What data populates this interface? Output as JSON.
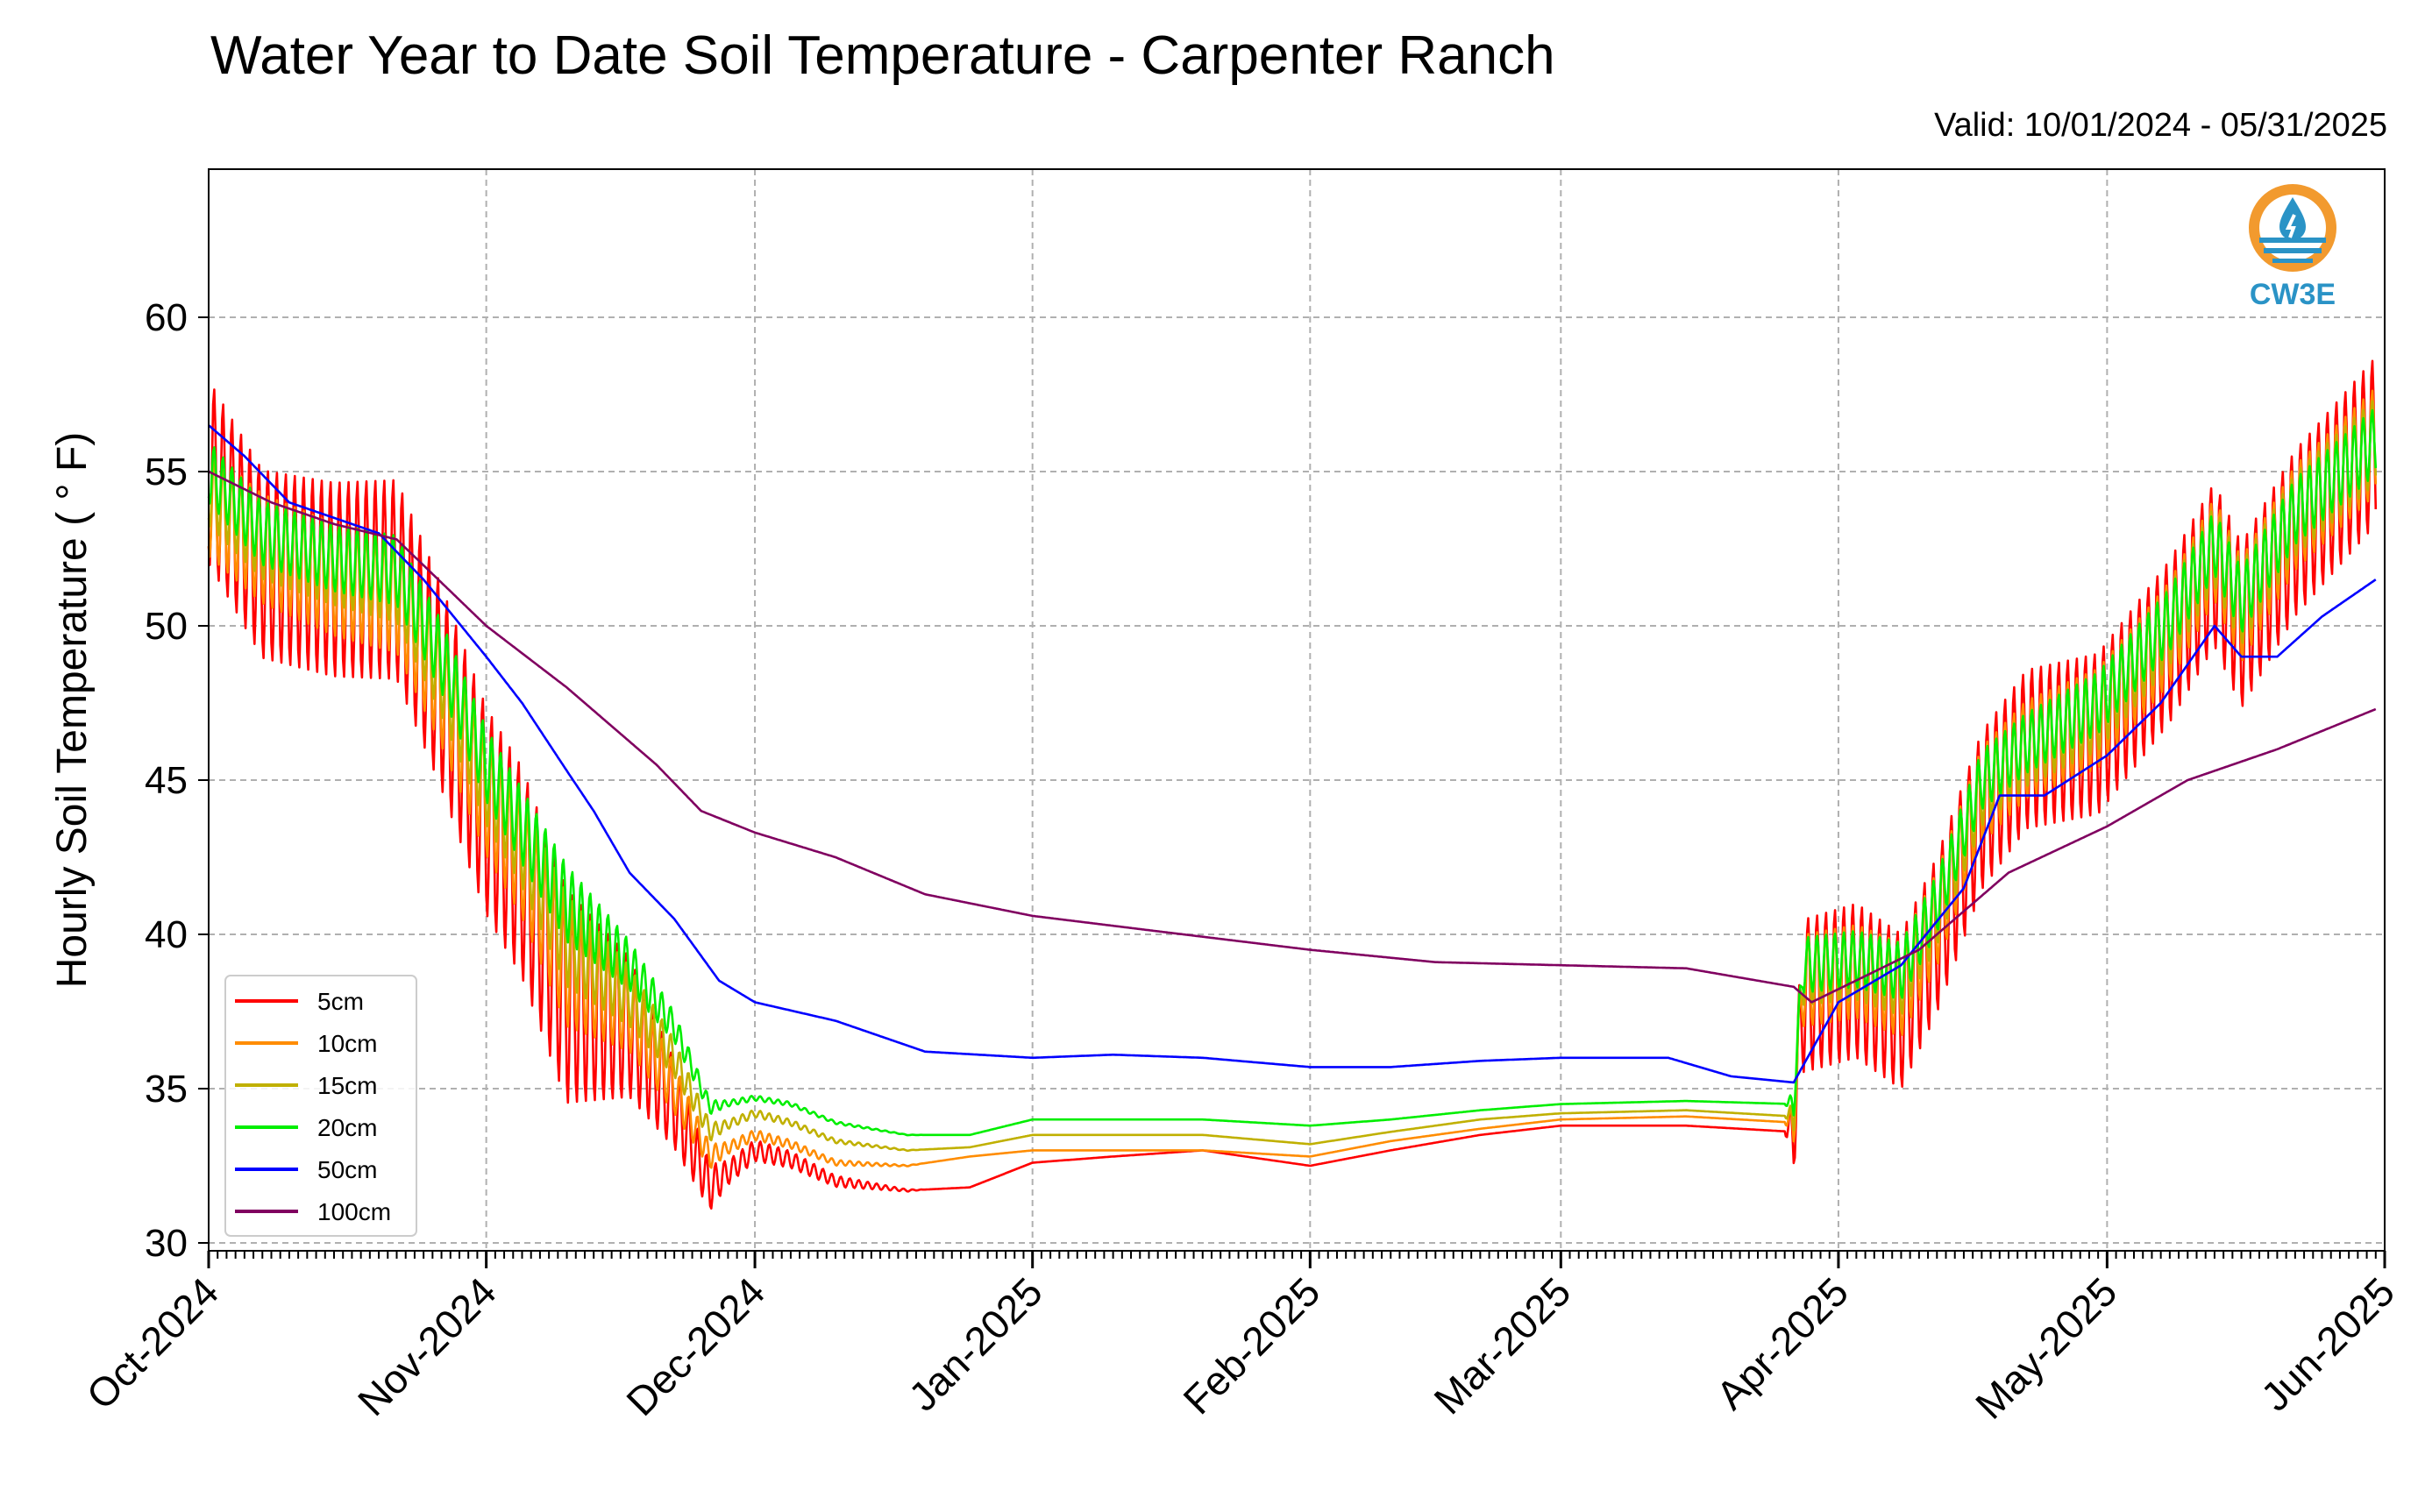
{
  "header": {
    "title": "Water Year to Date Soil Temperature - Carpenter Ranch",
    "valid": "Valid: 10/01/2024 - 05/31/2025"
  },
  "logo": {
    "text": "CW3E",
    "icon": "water-drop-logo-icon",
    "color": "#2a93c6",
    "ring_color": "#f29a2e"
  },
  "chart_data": {
    "type": "line",
    "ylabel": "Hourly Soil Temperature ( ° F)",
    "xlabel": "",
    "ylim": [
      30,
      65
    ],
    "yticks": [
      30,
      35,
      40,
      45,
      50,
      55,
      60
    ],
    "xlim": [
      "2024-10-01",
      "2025-06-01"
    ],
    "xticks": [
      "Oct-2024",
      "Nov-2024",
      "Dec-2024",
      "Jan-2025",
      "Feb-2025",
      "Mar-2025",
      "Apr-2025",
      "May-2025",
      "Jun-2025"
    ],
    "xtick_dates": [
      "2024-10-01",
      "2024-11-01",
      "2024-12-01",
      "2025-01-01",
      "2025-02-01",
      "2025-03-01",
      "2025-04-01",
      "2025-05-01",
      "2025-06-01"
    ],
    "grid": true,
    "legend_position": "lower-left",
    "series": [
      {
        "name": "5cm",
        "color": "#ff0000",
        "amplitude": [
          [
            0,
            6
          ],
          [
            40,
            7
          ],
          [
            58,
            0.8
          ],
          [
            80,
            0
          ],
          [
            176,
            0
          ],
          [
            178,
            5
          ],
          [
            243,
            5.5
          ]
        ],
        "points": [
          [
            "2024-10-01",
            55
          ],
          [
            "2024-10-07",
            52
          ],
          [
            "2024-10-15",
            51.5
          ],
          [
            "2024-10-22",
            51.5
          ],
          [
            "2024-10-27",
            48
          ],
          [
            "2024-11-01",
            44
          ],
          [
            "2024-11-05",
            42
          ],
          [
            "2024-11-10",
            38
          ],
          [
            "2024-11-17",
            37
          ],
          [
            "2024-11-22",
            34.5
          ],
          [
            "2024-11-26",
            31.8
          ],
          [
            "2024-12-01",
            33
          ],
          [
            "2024-12-05",
            32.7
          ],
          [
            "2024-12-10",
            32
          ],
          [
            "2024-12-18",
            31.7
          ],
          [
            "2024-12-25",
            31.8
          ],
          [
            "2025-01-01",
            32.6
          ],
          [
            "2025-01-10",
            32.8
          ],
          [
            "2025-01-20",
            33
          ],
          [
            "2025-02-01",
            32.5
          ],
          [
            "2025-02-10",
            33
          ],
          [
            "2025-02-20",
            33.5
          ],
          [
            "2025-03-01",
            33.8
          ],
          [
            "2025-03-15",
            33.8
          ],
          [
            "2025-03-27",
            33.6
          ],
          [
            "2025-03-28",
            38
          ],
          [
            "2025-04-03",
            38.5
          ],
          [
            "2025-04-08",
            37.5
          ],
          [
            "2025-04-12",
            40
          ],
          [
            "2025-04-17",
            44
          ],
          [
            "2025-04-22",
            46
          ],
          [
            "2025-04-30",
            46.5
          ],
          [
            "2025-05-08",
            49.5
          ],
          [
            "2025-05-13",
            52
          ],
          [
            "2025-05-16",
            50
          ],
          [
            "2025-05-22",
            53
          ],
          [
            "2025-05-31",
            56
          ]
        ]
      },
      {
        "name": "10cm",
        "color": "#ff8c00",
        "amplitude": [
          [
            0,
            3.5
          ],
          [
            40,
            4
          ],
          [
            58,
            0.4
          ],
          [
            80,
            0
          ],
          [
            176,
            0
          ],
          [
            178,
            3
          ],
          [
            243,
            3.5
          ]
        ],
        "points": [
          [
            "2024-10-01",
            54
          ],
          [
            "2024-10-07",
            52.5
          ],
          [
            "2024-10-15",
            51.5
          ],
          [
            "2024-10-22",
            51
          ],
          [
            "2024-10-27",
            48
          ],
          [
            "2024-11-01",
            44.5
          ],
          [
            "2024-11-05",
            42.5
          ],
          [
            "2024-11-10",
            39
          ],
          [
            "2024-11-17",
            37.5
          ],
          [
            "2024-11-22",
            35
          ],
          [
            "2024-11-26",
            32.8
          ],
          [
            "2024-12-01",
            33.5
          ],
          [
            "2024-12-05",
            33.2
          ],
          [
            "2024-12-10",
            32.6
          ],
          [
            "2024-12-18",
            32.5
          ],
          [
            "2024-12-25",
            32.8
          ],
          [
            "2025-01-01",
            33
          ],
          [
            "2025-01-10",
            33
          ],
          [
            "2025-01-20",
            33
          ],
          [
            "2025-02-01",
            32.8
          ],
          [
            "2025-02-10",
            33.3
          ],
          [
            "2025-02-20",
            33.7
          ],
          [
            "2025-03-01",
            34
          ],
          [
            "2025-03-15",
            34.1
          ],
          [
            "2025-03-27",
            33.9
          ],
          [
            "2025-03-28",
            38.5
          ],
          [
            "2025-04-03",
            38.8
          ],
          [
            "2025-04-08",
            38.2
          ],
          [
            "2025-04-12",
            40.5
          ],
          [
            "2025-04-17",
            44.5
          ],
          [
            "2025-04-22",
            46
          ],
          [
            "2025-04-30",
            47
          ],
          [
            "2025-05-08",
            49.8
          ],
          [
            "2025-05-13",
            52.5
          ],
          [
            "2025-05-16",
            50.5
          ],
          [
            "2025-05-22",
            53.5
          ],
          [
            "2025-05-31",
            56
          ]
        ]
      },
      {
        "name": "15cm",
        "color": "#c0b000",
        "amplitude": [
          [
            0,
            2.5
          ],
          [
            40,
            3
          ],
          [
            58,
            0.3
          ],
          [
            80,
            0
          ],
          [
            176,
            0
          ],
          [
            178,
            2.2
          ],
          [
            243,
            2.8
          ]
        ],
        "points": [
          [
            "2024-10-01",
            54.5
          ],
          [
            "2024-10-07",
            52.8
          ],
          [
            "2024-10-15",
            52
          ],
          [
            "2024-10-22",
            51.5
          ],
          [
            "2024-10-27",
            48.5
          ],
          [
            "2024-11-01",
            45
          ],
          [
            "2024-11-05",
            43
          ],
          [
            "2024-11-10",
            39.8
          ],
          [
            "2024-11-17",
            38
          ],
          [
            "2024-11-22",
            36
          ],
          [
            "2024-11-26",
            33.6
          ],
          [
            "2024-12-01",
            34.2
          ],
          [
            "2024-12-05",
            33.9
          ],
          [
            "2024-12-10",
            33.3
          ],
          [
            "2024-12-18",
            33
          ],
          [
            "2024-12-25",
            33.1
          ],
          [
            "2025-01-01",
            33.5
          ],
          [
            "2025-01-10",
            33.5
          ],
          [
            "2025-01-20",
            33.5
          ],
          [
            "2025-02-01",
            33.2
          ],
          [
            "2025-02-10",
            33.6
          ],
          [
            "2025-02-20",
            34
          ],
          [
            "2025-03-01",
            34.2
          ],
          [
            "2025-03-15",
            34.3
          ],
          [
            "2025-03-27",
            34.1
          ],
          [
            "2025-03-28",
            38.8
          ],
          [
            "2025-04-03",
            39
          ],
          [
            "2025-04-08",
            38.5
          ],
          [
            "2025-04-12",
            40.8
          ],
          [
            "2025-04-17",
            44.7
          ],
          [
            "2025-04-22",
            46
          ],
          [
            "2025-04-30",
            47.2
          ],
          [
            "2025-05-08",
            50
          ],
          [
            "2025-05-13",
            52.6
          ],
          [
            "2025-05-16",
            50.7
          ],
          [
            "2025-05-22",
            53.6
          ],
          [
            "2025-05-31",
            56
          ]
        ]
      },
      {
        "name": "20cm",
        "color": "#00ee00",
        "amplitude": [
          [
            0,
            2
          ],
          [
            40,
            2.5
          ],
          [
            58,
            0.2
          ],
          [
            80,
            0
          ],
          [
            176,
            0
          ],
          [
            178,
            1.8
          ],
          [
            243,
            2.2
          ]
        ],
        "points": [
          [
            "2024-10-01",
            55
          ],
          [
            "2024-10-07",
            53
          ],
          [
            "2024-10-15",
            52.2
          ],
          [
            "2024-10-22",
            51.8
          ],
          [
            "2024-10-27",
            49
          ],
          [
            "2024-11-01",
            45.5
          ],
          [
            "2024-11-05",
            43.5
          ],
          [
            "2024-11-10",
            41
          ],
          [
            "2024-11-17",
            39
          ],
          [
            "2024-11-22",
            37
          ],
          [
            "2024-11-26",
            34.4
          ],
          [
            "2024-12-01",
            34.7
          ],
          [
            "2024-12-05",
            34.5
          ],
          [
            "2024-12-10",
            33.9
          ],
          [
            "2024-12-18",
            33.5
          ],
          [
            "2024-12-25",
            33.5
          ],
          [
            "2025-01-01",
            34
          ],
          [
            "2025-01-10",
            34
          ],
          [
            "2025-01-20",
            34
          ],
          [
            "2025-02-01",
            33.8
          ],
          [
            "2025-02-10",
            34
          ],
          [
            "2025-02-20",
            34.3
          ],
          [
            "2025-03-01",
            34.5
          ],
          [
            "2025-03-15",
            34.6
          ],
          [
            "2025-03-27",
            34.5
          ],
          [
            "2025-03-28",
            39
          ],
          [
            "2025-04-03",
            39.2
          ],
          [
            "2025-04-08",
            38.8
          ],
          [
            "2025-04-12",
            41
          ],
          [
            "2025-04-17",
            45
          ],
          [
            "2025-04-22",
            46.2
          ],
          [
            "2025-04-30",
            47.5
          ],
          [
            "2025-05-08",
            50.2
          ],
          [
            "2025-05-13",
            52.7
          ],
          [
            "2025-05-16",
            50.8
          ],
          [
            "2025-05-22",
            53.7
          ],
          [
            "2025-05-31",
            56
          ]
        ]
      },
      {
        "name": "50cm",
        "color": "#0000ff",
        "amplitude": [
          [
            0,
            0
          ],
          [
            243,
            0
          ]
        ],
        "points": [
          [
            "2024-10-01",
            56.5
          ],
          [
            "2024-10-05",
            55.5
          ],
          [
            "2024-10-10",
            54
          ],
          [
            "2024-10-20",
            53
          ],
          [
            "2024-10-25",
            51.5
          ],
          [
            "2024-11-01",
            49
          ],
          [
            "2024-11-05",
            47.5
          ],
          [
            "2024-11-10",
            45.3
          ],
          [
            "2024-11-13",
            44
          ],
          [
            "2024-11-17",
            42
          ],
          [
            "2024-11-22",
            40.5
          ],
          [
            "2024-11-27",
            38.5
          ],
          [
            "2024-12-01",
            37.8
          ],
          [
            "2024-12-10",
            37.2
          ],
          [
            "2024-12-20",
            36.2
          ],
          [
            "2025-01-01",
            36
          ],
          [
            "2025-01-10",
            36.1
          ],
          [
            "2025-01-20",
            36
          ],
          [
            "2025-02-01",
            35.7
          ],
          [
            "2025-02-10",
            35.7
          ],
          [
            "2025-02-20",
            35.9
          ],
          [
            "2025-03-01",
            36
          ],
          [
            "2025-03-13",
            36
          ],
          [
            "2025-03-20",
            35.4
          ],
          [
            "2025-03-27",
            35.2
          ],
          [
            "2025-04-01",
            37.8
          ],
          [
            "2025-04-08",
            39
          ],
          [
            "2025-04-15",
            41.5
          ],
          [
            "2025-04-19",
            44.5
          ],
          [
            "2025-04-24",
            44.5
          ],
          [
            "2025-05-01",
            45.8
          ],
          [
            "2025-05-07",
            47.5
          ],
          [
            "2025-05-13",
            50
          ],
          [
            "2025-05-16",
            49
          ],
          [
            "2025-05-20",
            49
          ],
          [
            "2025-05-25",
            50.3
          ],
          [
            "2025-05-31",
            51.5
          ]
        ]
      },
      {
        "name": "100cm",
        "color": "#800060",
        "amplitude": [
          [
            0,
            0
          ],
          [
            243,
            0
          ]
        ],
        "points": [
          [
            "2024-10-01",
            55
          ],
          [
            "2024-10-08",
            54
          ],
          [
            "2024-10-15",
            53.3
          ],
          [
            "2024-10-22",
            52.8
          ],
          [
            "2024-11-01",
            50
          ],
          [
            "2024-11-10",
            48
          ],
          [
            "2024-11-20",
            45.5
          ],
          [
            "2024-11-25",
            44
          ],
          [
            "2024-12-01",
            43.3
          ],
          [
            "2024-12-10",
            42.5
          ],
          [
            "2024-12-20",
            41.3
          ],
          [
            "2025-01-01",
            40.6
          ],
          [
            "2025-01-15",
            40.1
          ],
          [
            "2025-02-01",
            39.5
          ],
          [
            "2025-02-15",
            39.1
          ],
          [
            "2025-03-01",
            39
          ],
          [
            "2025-03-15",
            38.9
          ],
          [
            "2025-03-27",
            38.3
          ],
          [
            "2025-03-29",
            37.8
          ],
          [
            "2025-04-10",
            39.5
          ],
          [
            "2025-04-20",
            42
          ],
          [
            "2025-05-01",
            43.5
          ],
          [
            "2025-05-10",
            45
          ],
          [
            "2025-05-20",
            46
          ],
          [
            "2025-05-31",
            47.3
          ]
        ]
      }
    ]
  }
}
